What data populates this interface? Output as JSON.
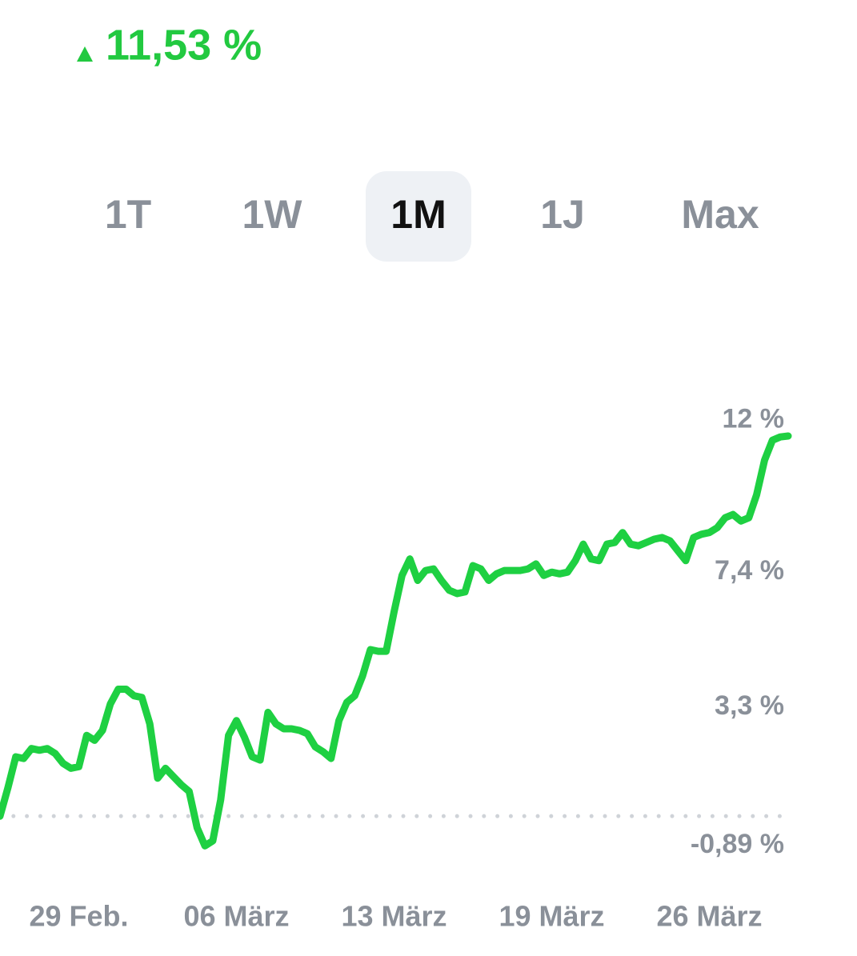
{
  "header": {
    "change": "11,53 %"
  },
  "tabs": [
    {
      "label": "1T"
    },
    {
      "label": "1W"
    },
    {
      "label": "1M",
      "selected": true
    },
    {
      "label": "1J"
    },
    {
      "label": "Max"
    }
  ],
  "chart_data": {
    "type": "line",
    "color": "#1ed042",
    "categories": [
      null,
      null,
      null,
      null,
      null,
      null,
      null,
      null,
      null,
      null,
      "29 Feb.",
      null,
      null,
      null,
      null,
      null,
      null,
      null,
      null,
      null,
      null,
      null,
      null,
      null,
      null,
      null,
      null,
      null,
      null,
      null,
      "06 März",
      null,
      null,
      null,
      null,
      null,
      null,
      null,
      null,
      null,
      null,
      null,
      null,
      null,
      null,
      null,
      null,
      null,
      null,
      null,
      "13 März",
      null,
      null,
      null,
      null,
      null,
      null,
      null,
      null,
      null,
      null,
      null,
      null,
      null,
      null,
      null,
      null,
      null,
      null,
      null,
      "19 März",
      null,
      null,
      null,
      null,
      null,
      null,
      null,
      null,
      null,
      null,
      null,
      null,
      null,
      null,
      null,
      null,
      null,
      null,
      null,
      "26 März",
      null,
      null,
      null,
      null,
      null,
      null,
      null,
      null,
      null,
      null
    ],
    "values": [
      0,
      0.85,
      1.8,
      1.75,
      2.05,
      2.0,
      2.05,
      1.9,
      1.6,
      1.45,
      1.5,
      2.45,
      2.3,
      2.6,
      3.4,
      3.85,
      3.85,
      3.65,
      3.6,
      2.8,
      1.15,
      1.45,
      1.2,
      0.95,
      0.75,
      -0.35,
      -0.9,
      -0.75,
      0.5,
      2.45,
      2.9,
      2.4,
      1.8,
      1.7,
      3.15,
      2.8,
      2.65,
      2.65,
      2.6,
      2.5,
      2.1,
      1.95,
      1.75,
      2.9,
      3.45,
      3.65,
      4.25,
      5.05,
      5.0,
      5.0,
      6.2,
      7.3,
      7.8,
      7.15,
      7.45,
      7.5,
      7.15,
      6.85,
      6.75,
      6.8,
      7.6,
      7.5,
      7.15,
      7.35,
      7.45,
      7.45,
      7.45,
      7.5,
      7.65,
      7.3,
      7.4,
      7.35,
      7.4,
      7.75,
      8.25,
      7.8,
      7.75,
      8.25,
      8.3,
      8.6,
      8.25,
      8.2,
      8.3,
      8.4,
      8.45,
      8.35,
      8.05,
      7.75,
      8.45,
      8.55,
      8.6,
      8.75,
      9.05,
      9.15,
      8.95,
      9.05,
      9.75,
      10.8,
      11.4,
      11.5,
      11.53
    ],
    "ylim": [
      -1.5,
      12.5
    ],
    "yticks": [
      {
        "value": 12,
        "label": "12 %"
      },
      {
        "value": 7.4,
        "label": "7,4 %"
      },
      {
        "value": 3.3,
        "label": "3,3 %"
      },
      {
        "value": -0.89,
        "label": "-0,89 %"
      }
    ]
  }
}
